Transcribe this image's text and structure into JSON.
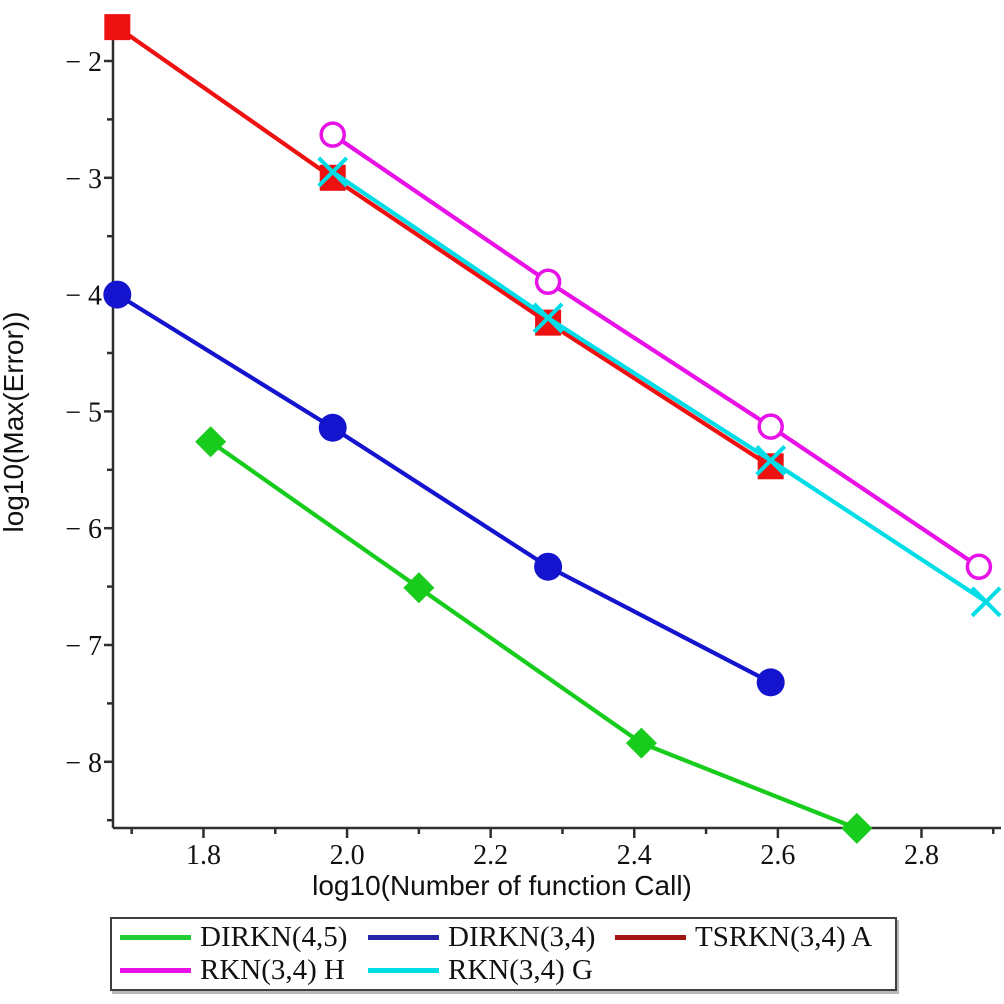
{
  "figure": {
    "background": "#ffffff",
    "axis_color": "#2e2e2e",
    "tick_label_color": "#111111"
  },
  "chart_data": {
    "type": "line",
    "title": "",
    "xlabel": "log10(Number of function Call)",
    "ylabel": "log10(Max(Error))",
    "xlim": [
      1.674,
      2.9
    ],
    "ylim": [
      -8.57,
      -1.62
    ],
    "grid": false,
    "legend_position": "bottom",
    "x_ticks_major": [
      1.8,
      2.0,
      2.2,
      2.4,
      2.6,
      2.8
    ],
    "x_tick_labels": [
      "1.8",
      "2.0",
      "2.2",
      "2.4",
      "2.6",
      "2.8"
    ],
    "x_ticks_minor": [
      1.7,
      1.9,
      2.1,
      2.3,
      2.5,
      2.7,
      2.9
    ],
    "y_ticks_major": [
      -2,
      -3,
      -4,
      -5,
      -6,
      -7,
      -8
    ],
    "y_tick_labels": [
      "− 2",
      "− 3",
      "− 4",
      "− 5",
      "− 6",
      "− 7",
      "− 8"
    ],
    "y_ticks_minor": [
      -2.5,
      -3.5,
      -4.5,
      -5.5,
      -6.5,
      -7.5,
      -8.5
    ],
    "series": [
      {
        "name": "DIRKN(4,5)",
        "color": "#17CC1C",
        "legend_color": "#22CC33",
        "marker": "diamond",
        "x": [
          1.81,
          2.1,
          2.41,
          2.71
        ],
        "y": [
          -5.26,
          -6.51,
          -7.84,
          -8.57
        ]
      },
      {
        "name": "DIRKN(3,4)",
        "color": "#1414CE",
        "legend_color": "#2525A8",
        "marker": "circle",
        "x": [
          1.68,
          1.98,
          2.28,
          2.59
        ],
        "y": [
          -4.0,
          -5.14,
          -6.33,
          -7.32
        ]
      },
      {
        "name": "TSRKN(3,4) A",
        "color": "#EE1111",
        "legend_color": "#A31515",
        "marker": "square",
        "x": [
          1.68,
          1.98,
          2.28,
          2.59
        ],
        "y": [
          -1.71,
          -3.0,
          -4.24,
          -5.47
        ]
      },
      {
        "name": "RKN(3,4) H",
        "color": "#E812E8",
        "legend_color": "#E812E8",
        "marker": "open-circle",
        "x": [
          1.98,
          2.28,
          2.59,
          2.88
        ],
        "y": [
          -2.63,
          -3.89,
          -5.13,
          -6.33
        ]
      },
      {
        "name": "RKN(3,4) G",
        "color": "#00DDE6",
        "legend_color": "#00DDE6",
        "marker": "x",
        "x": [
          1.98,
          2.28,
          2.59,
          2.89
        ],
        "y": [
          -2.95,
          -4.2,
          -5.42,
          -6.63
        ]
      }
    ]
  }
}
